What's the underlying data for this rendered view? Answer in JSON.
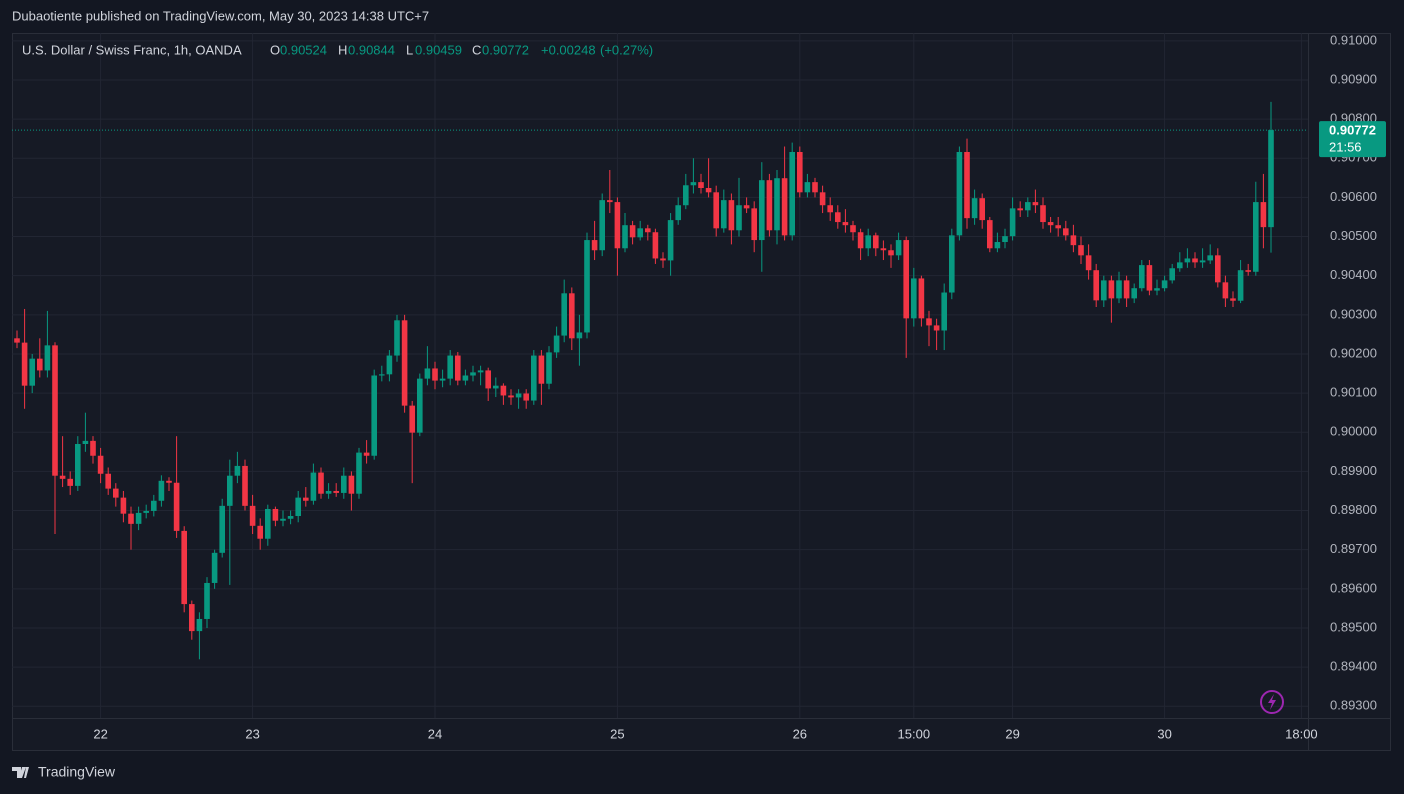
{
  "header": "Dubaotiente published on TradingView.com, May 30, 2023 14:38 UTC+7",
  "footer": "TradingView",
  "chart_data": {
    "type": "candlestick",
    "title": "U.S. Dollar / Swiss Franc, 1h, OANDA",
    "ohlc_labels": [
      "O",
      "H",
      "L",
      "C"
    ],
    "change": "+0.00248",
    "change_pct": "(+0.27%)",
    "countdown": "21:56",
    "up_color": "#089981",
    "down_color": "#f23645",
    "grid": true,
    "ylim": [
      0.8927,
      0.9102
    ],
    "yticks": [
      {
        "value": 0.893,
        "label": "0.89300"
      },
      {
        "value": 0.894,
        "label": "0.89400"
      },
      {
        "value": 0.895,
        "label": "0.89500"
      },
      {
        "value": 0.896,
        "label": "0.89600"
      },
      {
        "value": 0.897,
        "label": "0.89700"
      },
      {
        "value": 0.898,
        "label": "0.89800"
      },
      {
        "value": 0.899,
        "label": "0.89900"
      },
      {
        "value": 0.9,
        "label": "0.90000"
      },
      {
        "value": 0.901,
        "label": "0.90100"
      },
      {
        "value": 0.902,
        "label": "0.90200"
      },
      {
        "value": 0.903,
        "label": "0.90300"
      },
      {
        "value": 0.904,
        "label": "0.90400"
      },
      {
        "value": 0.905,
        "label": "0.90500"
      },
      {
        "value": 0.906,
        "label": "0.90600"
      },
      {
        "value": 0.907,
        "label": "0.90700"
      },
      {
        "value": 0.908,
        "label": "0.90800"
      },
      {
        "value": 0.909,
        "label": "0.90900"
      },
      {
        "value": 0.91,
        "label": "0.91000"
      }
    ],
    "categories": [
      null,
      null,
      null,
      null,
      null,
      null,
      null,
      null,
      null,
      null,
      null,
      "22",
      null,
      null,
      null,
      null,
      null,
      null,
      null,
      null,
      null,
      null,
      null,
      null,
      null,
      null,
      null,
      null,
      null,
      null,
      null,
      "23",
      null,
      null,
      null,
      null,
      null,
      null,
      null,
      null,
      null,
      null,
      null,
      null,
      null,
      null,
      null,
      null,
      null,
      null,
      null,
      null,
      null,
      null,
      null,
      "24",
      null,
      null,
      null,
      null,
      null,
      null,
      null,
      null,
      null,
      null,
      null,
      null,
      null,
      null,
      null,
      null,
      null,
      null,
      null,
      null,
      null,
      null,
      null,
      "25",
      null,
      null,
      null,
      null,
      null,
      null,
      null,
      null,
      null,
      null,
      null,
      null,
      null,
      null,
      null,
      null,
      null,
      null,
      null,
      null,
      null,
      null,
      null,
      "26",
      null,
      null,
      null,
      null,
      null,
      null,
      null,
      null,
      null,
      null,
      null,
      null,
      null,
      null,
      "15:00",
      null,
      null,
      null,
      null,
      null,
      null,
      null,
      null,
      null,
      null,
      null,
      null,
      "29",
      null,
      null,
      null,
      null,
      null,
      null,
      null,
      null,
      null,
      null,
      null,
      null,
      null,
      null,
      null,
      null,
      null,
      null,
      null,
      "30",
      null,
      null,
      null,
      null,
      null,
      null,
      null,
      null,
      null,
      null,
      null,
      null,
      null,
      null,
      null,
      null,
      null,
      "18:00"
    ],
    "open": [
      0.9024,
      0.90229,
      0.90119,
      0.90188,
      0.90158,
      0.90222,
      0.89889,
      0.89881,
      0.89863,
      0.8997,
      0.89978,
      0.8994,
      0.89894,
      0.89856,
      0.89833,
      0.89792,
      0.89766,
      0.89794,
      0.89799,
      0.89825,
      0.89876,
      0.89871,
      0.89748,
      0.89561,
      0.89492,
      0.89523,
      0.89615,
      0.89692,
      0.89812,
      0.89889,
      0.89914,
      0.89812,
      0.89761,
      0.89728,
      0.89804,
      0.89774,
      0.89779,
      0.89786,
      0.89833,
      0.89825,
      0.89897,
      0.89843,
      0.8985,
      0.89845,
      0.89889,
      0.89843,
      0.89948,
      0.8994,
      0.90145,
      0.90148,
      0.90196,
      0.90286,
      0.90068,
      0.89999,
      0.90137,
      0.90163,
      0.90132,
      0.90137,
      0.90196,
      0.90132,
      0.90145,
      0.90153,
      0.90158,
      0.90112,
      0.90119,
      0.90094,
      0.90089,
      0.90099,
      0.90081,
      0.90196,
      0.90124,
      0.90204,
      0.90247,
      0.90355,
      0.9024,
      0.90255,
      0.90491,
      0.90465,
      0.90593,
      0.90588,
      0.9047,
      0.90529,
      0.90498,
      0.90521,
      0.90511,
      0.90444,
      0.90439,
      0.90542,
      0.9058,
      0.90631,
      0.90639,
      0.90624,
      0.90613,
      0.90521,
      0.90593,
      0.90516,
      0.9058,
      0.90572,
      0.90491,
      0.90644,
      0.90516,
      0.90649,
      0.90503,
      0.90716,
      0.90613,
      0.90639,
      0.90613,
      0.9058,
      0.90562,
      0.90537,
      0.90529,
      0.90511,
      0.9047,
      0.90503,
      0.9047,
      0.90465,
      0.90452,
      0.90491,
      0.90291,
      0.90393,
      0.90291,
      0.90273,
      0.9026,
      0.90357,
      0.90503,
      0.90716,
      0.90547,
      0.90598,
      0.90542,
      0.9047,
      0.90486,
      0.90501,
      0.90572,
      0.90567,
      0.90588,
      0.9058,
      0.90537,
      0.90529,
      0.90521,
      0.90503,
      0.90478,
      0.90452,
      0.90414,
      0.90337,
      0.90388,
      0.90342,
      0.90388,
      0.90342,
      0.90368,
      0.90427,
      0.90362,
      0.90368,
      0.90388,
      0.90419,
      0.90434,
      0.90444,
      0.90434,
      0.90439,
      0.90452,
      0.90383,
      0.90342,
      0.90336,
      0.90414,
      0.9041,
      0.90588,
      0.90524,
      null,
      null,
      null,
      null
    ],
    "high": [
      0.9026,
      0.90315,
      0.902,
      0.9024,
      0.9031,
      0.9023,
      0.8999,
      0.899,
      0.8999,
      0.9005,
      0.8999,
      0.8996,
      0.8991,
      0.8987,
      0.8985,
      0.8981,
      0.8981,
      0.89815,
      0.8984,
      0.8989,
      0.89885,
      0.8999,
      0.8976,
      0.8957,
      0.8954,
      0.8963,
      0.897,
      0.8983,
      0.8993,
      0.8995,
      0.8993,
      0.8984,
      0.8978,
      0.89815,
      0.8981,
      0.898,
      0.898,
      0.8985,
      0.8986,
      0.8992,
      0.8991,
      0.8987,
      0.8987,
      0.8991,
      0.899,
      0.8996,
      0.8998,
      0.9016,
      0.9017,
      0.9021,
      0.903,
      0.903,
      0.9008,
      0.9015,
      0.9022,
      0.9018,
      0.9016,
      0.9021,
      0.90205,
      0.9016,
      0.9017,
      0.9017,
      0.90165,
      0.9014,
      0.90125,
      0.9011,
      0.9011,
      0.9011,
      0.9021,
      0.9021,
      0.9022,
      0.9027,
      0.9039,
      0.9037,
      0.903,
      0.9051,
      0.9054,
      0.9061,
      0.9067,
      0.906,
      0.9056,
      0.9054,
      0.9054,
      0.9053,
      0.9052,
      0.9046,
      0.9056,
      0.906,
      0.9066,
      0.907,
      0.9066,
      0.907,
      0.9063,
      0.9062,
      0.9061,
      0.9065,
      0.906,
      0.9059,
      0.9069,
      0.9066,
      0.9067,
      0.9073,
      0.9074,
      0.9073,
      0.9066,
      0.9065,
      0.9063,
      0.906,
      0.9058,
      0.9057,
      0.9054,
      0.9052,
      0.9052,
      0.9051,
      0.9049,
      0.9048,
      0.9051,
      0.905,
      0.9042,
      0.904,
      0.9031,
      0.9029,
      0.9038,
      0.9052,
      0.9073,
      0.9075,
      0.9062,
      0.9061,
      0.9055,
      0.9051,
      0.9052,
      0.906,
      0.9059,
      0.906,
      0.9062,
      0.906,
      0.9055,
      0.9055,
      0.9054,
      0.9053,
      0.905,
      0.9048,
      0.9043,
      0.904,
      0.904,
      0.9041,
      0.904,
      0.9038,
      0.9044,
      0.9044,
      0.9039,
      0.904,
      0.9043,
      0.9046,
      0.9047,
      0.9046,
      0.9047,
      0.9048,
      0.9047,
      0.904,
      0.9036,
      0.9044,
      0.9043,
      0.9064,
      0.9066,
      0.90844,
      null,
      null,
      null,
      null
    ],
    "low": [
      0.90215,
      0.9006,
      0.901,
      0.9014,
      0.9014,
      0.8974,
      0.8986,
      0.8984,
      0.8985,
      0.8995,
      0.8992,
      0.8987,
      0.8984,
      0.8981,
      0.8977,
      0.897,
      0.8975,
      0.8978,
      0.89785,
      0.8981,
      0.8985,
      0.8973,
      0.8954,
      0.8947,
      0.8942,
      0.895,
      0.896,
      0.8968,
      0.8961,
      0.8987,
      0.898,
      0.8974,
      0.897,
      0.8971,
      0.8976,
      0.8976,
      0.89765,
      0.8977,
      0.8981,
      0.89815,
      0.8983,
      0.8983,
      0.89835,
      0.8983,
      0.898,
      0.8983,
      0.8992,
      0.8993,
      0.9013,
      0.9013,
      0.9018,
      0.9005,
      0.8987,
      0.8999,
      0.9012,
      0.9011,
      0.90115,
      0.9012,
      0.9012,
      0.9012,
      0.9013,
      0.9012,
      0.9008,
      0.9009,
      0.9007,
      0.9007,
      0.9006,
      0.9006,
      0.9007,
      0.9007,
      0.9011,
      0.9019,
      0.9023,
      0.9021,
      0.9017,
      0.9024,
      0.9044,
      0.9045,
      0.9056,
      0.904,
      0.9046,
      0.9048,
      0.9049,
      0.9049,
      0.9043,
      0.9042,
      0.904,
      0.9053,
      0.9057,
      0.9061,
      0.9061,
      0.906,
      0.905,
      0.9051,
      0.9048,
      0.905,
      0.9056,
      0.9046,
      0.9041,
      0.905,
      0.9048,
      0.9049,
      0.9049,
      0.906,
      0.906,
      0.906,
      0.9056,
      0.9054,
      0.9052,
      0.9051,
      0.9049,
      0.9044,
      0.9045,
      0.9045,
      0.9044,
      0.9042,
      0.9044,
      0.9019,
      0.9027,
      0.9027,
      0.9022,
      0.9021,
      0.9021,
      0.9034,
      0.9049,
      0.9052,
      0.9053,
      0.9052,
      0.9046,
      0.9046,
      0.9047,
      0.9049,
      0.9055,
      0.9055,
      0.9056,
      0.9052,
      0.9051,
      0.905,
      0.9049,
      0.9046,
      0.9043,
      0.9039,
      0.9032,
      0.9032,
      0.9028,
      0.9033,
      0.9032,
      0.9033,
      0.9036,
      0.9035,
      0.9035,
      0.9036,
      0.9038,
      0.9041,
      0.9042,
      0.9042,
      0.9042,
      0.9043,
      0.9037,
      0.9032,
      0.9032,
      0.9033,
      0.904,
      0.904,
      0.9047,
      0.90459,
      null,
      null,
      null,
      null
    ],
    "close": [
      0.90229,
      0.90119,
      0.90188,
      0.90158,
      0.90222,
      0.89889,
      0.89881,
      0.89863,
      0.8997,
      0.89978,
      0.8994,
      0.89894,
      0.89856,
      0.89833,
      0.89792,
      0.89766,
      0.89794,
      0.89799,
      0.89825,
      0.89876,
      0.89871,
      0.89748,
      0.89561,
      0.89492,
      0.89523,
      0.89615,
      0.89692,
      0.89812,
      0.89889,
      0.89914,
      0.89812,
      0.89761,
      0.89728,
      0.89804,
      0.89774,
      0.89779,
      0.89786,
      0.89833,
      0.89825,
      0.89897,
      0.89843,
      0.8985,
      0.89845,
      0.89889,
      0.89843,
      0.89948,
      0.8994,
      0.90145,
      0.90148,
      0.90196,
      0.90286,
      0.90068,
      0.89999,
      0.90137,
      0.90163,
      0.90132,
      0.90137,
      0.90196,
      0.90132,
      0.90145,
      0.90153,
      0.90158,
      0.90112,
      0.90119,
      0.90094,
      0.90089,
      0.90099,
      0.90081,
      0.90196,
      0.90124,
      0.90204,
      0.90247,
      0.90355,
      0.9024,
      0.90255,
      0.90491,
      0.90465,
      0.90593,
      0.90588,
      0.9047,
      0.90529,
      0.90498,
      0.90521,
      0.90511,
      0.90444,
      0.90439,
      0.90542,
      0.9058,
      0.90631,
      0.90639,
      0.90624,
      0.90613,
      0.90521,
      0.90593,
      0.90516,
      0.9058,
      0.90572,
      0.90491,
      0.90644,
      0.90516,
      0.90649,
      0.90503,
      0.90716,
      0.90613,
      0.90639,
      0.90613,
      0.9058,
      0.90562,
      0.90537,
      0.90529,
      0.90511,
      0.9047,
      0.90503,
      0.9047,
      0.90465,
      0.90452,
      0.90491,
      0.90291,
      0.90393,
      0.90291,
      0.90273,
      0.9026,
      0.90357,
      0.90503,
      0.90716,
      0.90547,
      0.90598,
      0.90542,
      0.9047,
      0.90486,
      0.90501,
      0.90572,
      0.90567,
      0.90588,
      0.9058,
      0.90537,
      0.90529,
      0.90521,
      0.90503,
      0.90478,
      0.90452,
      0.90414,
      0.90337,
      0.90388,
      0.90342,
      0.90388,
      0.90342,
      0.90368,
      0.90427,
      0.90362,
      0.90368,
      0.90388,
      0.90419,
      0.90434,
      0.90444,
      0.90434,
      0.90439,
      0.90452,
      0.90383,
      0.90342,
      0.90336,
      0.90414,
      0.9041,
      0.90588,
      0.90524,
      0.90772,
      null,
      null,
      null,
      null
    ]
  }
}
